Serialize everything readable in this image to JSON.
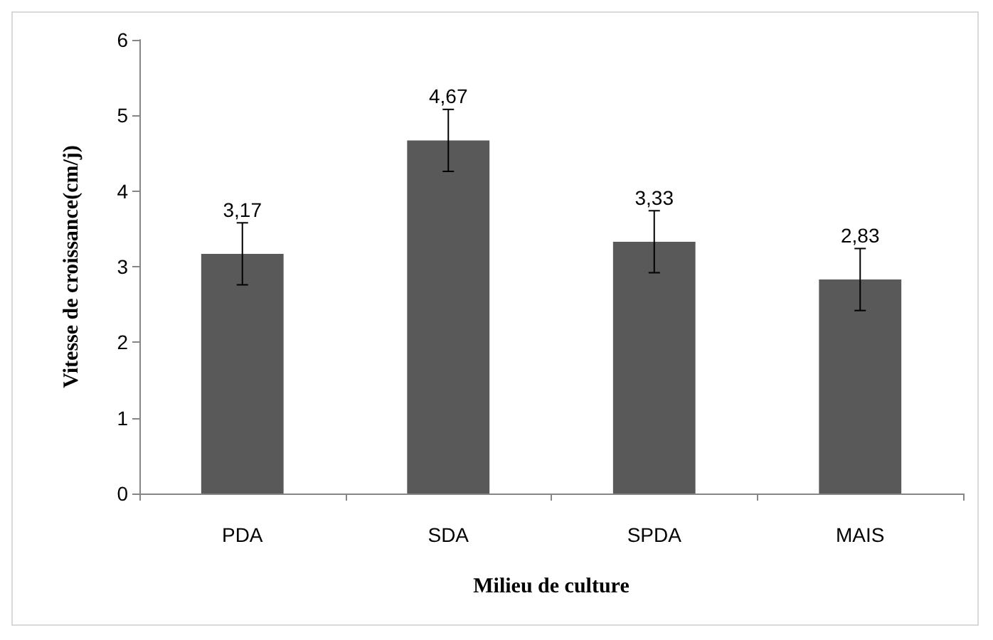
{
  "chart_data": {
    "type": "bar",
    "xlabel": "Milieu de culture",
    "ylabel": "Vitesse de croissance(cm/j)",
    "categories": [
      "PDA",
      "SDA",
      "SPDA",
      "MAIS"
    ],
    "values": [
      3.17,
      4.67,
      3.33,
      2.83
    ],
    "value_labels": [
      "3,17",
      "4,67",
      "3,33",
      "2,83"
    ],
    "errors": [
      0.41,
      0.41,
      0.41,
      0.41
    ],
    "color": "#595959",
    "ylim": [
      0,
      6
    ],
    "yticks": [
      0,
      1,
      2,
      3,
      4,
      5,
      6
    ],
    "grid": false
  }
}
